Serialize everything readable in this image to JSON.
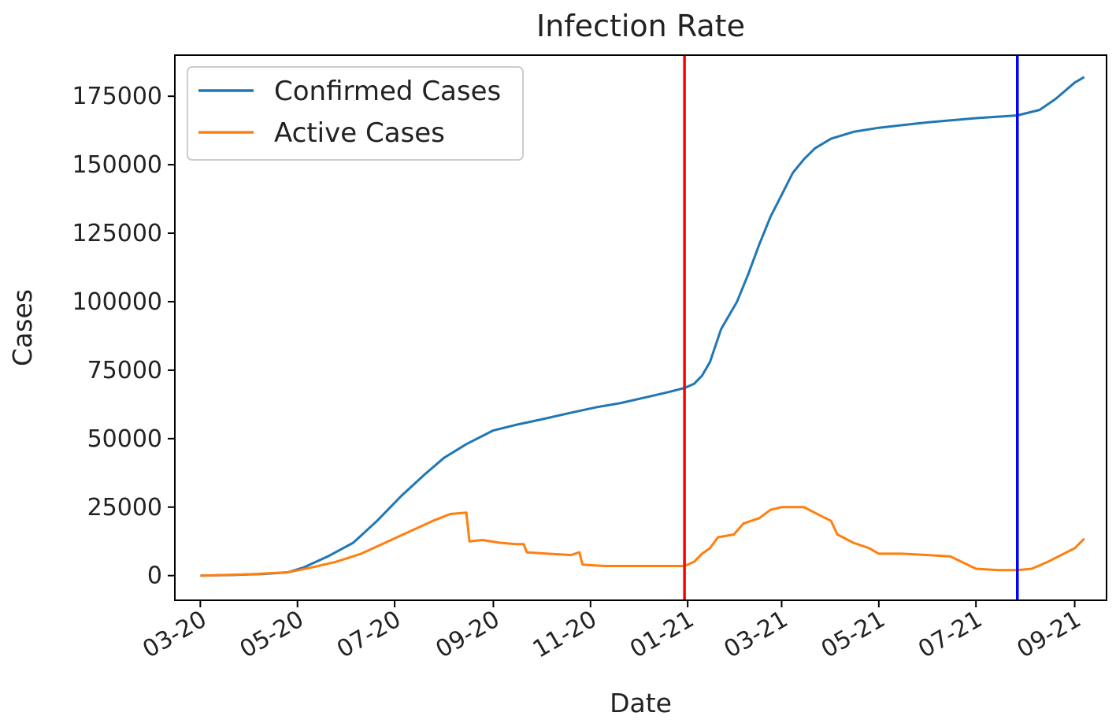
{
  "chart_data": {
    "type": "line",
    "title": "Infection Rate",
    "xlabel": "Date",
    "ylabel": "Cases",
    "xlim": [
      "2020-02-14",
      "2021-09-21"
    ],
    "ylim": [
      -9000,
      190000
    ],
    "x_ticks": [
      {
        "date": "2020-03-01",
        "label": "03-20"
      },
      {
        "date": "2020-05-01",
        "label": "05-20"
      },
      {
        "date": "2020-07-01",
        "label": "07-20"
      },
      {
        "date": "2020-09-01",
        "label": "09-20"
      },
      {
        "date": "2020-11-01",
        "label": "11-20"
      },
      {
        "date": "2021-01-01",
        "label": "01-21"
      },
      {
        "date": "2021-03-01",
        "label": "03-21"
      },
      {
        "date": "2021-05-01",
        "label": "05-21"
      },
      {
        "date": "2021-07-01",
        "label": "07-21"
      },
      {
        "date": "2021-09-01",
        "label": "09-21"
      }
    ],
    "y_ticks": [
      0,
      25000,
      50000,
      75000,
      100000,
      125000,
      150000,
      175000
    ],
    "grid": false,
    "legend_position": "top-left",
    "vlines": [
      {
        "date": "2020-12-30",
        "color": "#ff0000"
      },
      {
        "date": "2021-07-27",
        "color": "#0000ff"
      }
    ],
    "series": [
      {
        "name": "Confirmed Cases",
        "color": "#1f77b4",
        "points": [
          [
            "2020-03-01",
            0
          ],
          [
            "2020-03-20",
            200
          ],
          [
            "2020-04-10",
            600
          ],
          [
            "2020-04-25",
            1200
          ],
          [
            "2020-05-05",
            3000
          ],
          [
            "2020-05-20",
            7000
          ],
          [
            "2020-06-05",
            12000
          ],
          [
            "2020-06-20",
            20000
          ],
          [
            "2020-07-05",
            29000
          ],
          [
            "2020-07-20",
            37000
          ],
          [
            "2020-08-01",
            43000
          ],
          [
            "2020-08-15",
            48000
          ],
          [
            "2020-09-01",
            53000
          ],
          [
            "2020-09-15",
            55000
          ],
          [
            "2020-10-01",
            57000
          ],
          [
            "2020-10-20",
            59500
          ],
          [
            "2020-11-05",
            61500
          ],
          [
            "2020-11-20",
            63000
          ],
          [
            "2020-12-05",
            65000
          ],
          [
            "2020-12-20",
            67000
          ],
          [
            "2020-12-30",
            68500
          ],
          [
            "2021-01-05",
            70000
          ],
          [
            "2021-01-10",
            73000
          ],
          [
            "2021-01-15",
            78000
          ],
          [
            "2021-01-22",
            90000
          ],
          [
            "2021-02-01",
            100000
          ],
          [
            "2021-02-08",
            110000
          ],
          [
            "2021-02-15",
            121000
          ],
          [
            "2021-02-22",
            131000
          ],
          [
            "2021-03-01",
            139000
          ],
          [
            "2021-03-08",
            147000
          ],
          [
            "2021-03-15",
            152000
          ],
          [
            "2021-03-22",
            156000
          ],
          [
            "2021-04-01",
            159500
          ],
          [
            "2021-04-15",
            162000
          ],
          [
            "2021-05-01",
            163500
          ],
          [
            "2021-06-01",
            165500
          ],
          [
            "2021-07-01",
            167000
          ],
          [
            "2021-07-27",
            168000
          ],
          [
            "2021-08-10",
            170000
          ],
          [
            "2021-08-20",
            174000
          ],
          [
            "2021-09-01",
            180000
          ],
          [
            "2021-09-07",
            182000
          ]
        ]
      },
      {
        "name": "Active Cases",
        "color": "#ff7f0e",
        "points": [
          [
            "2020-03-01",
            0
          ],
          [
            "2020-04-01",
            500
          ],
          [
            "2020-04-25",
            1200
          ],
          [
            "2020-05-10",
            3000
          ],
          [
            "2020-05-25",
            5000
          ],
          [
            "2020-06-10",
            8000
          ],
          [
            "2020-06-25",
            12000
          ],
          [
            "2020-07-10",
            16000
          ],
          [
            "2020-07-25",
            20000
          ],
          [
            "2020-08-05",
            22500
          ],
          [
            "2020-08-15",
            23000
          ],
          [
            "2020-08-17",
            12500
          ],
          [
            "2020-08-25",
            13000
          ],
          [
            "2020-09-05",
            12000
          ],
          [
            "2020-09-15",
            11500
          ],
          [
            "2020-09-20",
            11500
          ],
          [
            "2020-09-22",
            8500
          ],
          [
            "2020-10-05",
            8000
          ],
          [
            "2020-10-20",
            7500
          ],
          [
            "2020-10-25",
            8500
          ],
          [
            "2020-10-27",
            4000
          ],
          [
            "2020-11-10",
            3500
          ],
          [
            "2020-12-01",
            3500
          ],
          [
            "2020-12-30",
            3500
          ],
          [
            "2021-01-05",
            5000
          ],
          [
            "2021-01-10",
            8000
          ],
          [
            "2021-01-15",
            10000
          ],
          [
            "2021-01-20",
            14000
          ],
          [
            "2021-01-30",
            15000
          ],
          [
            "2021-02-05",
            19000
          ],
          [
            "2021-02-15",
            21000
          ],
          [
            "2021-02-22",
            24000
          ],
          [
            "2021-03-01",
            25000
          ],
          [
            "2021-03-15",
            25000
          ],
          [
            "2021-03-25",
            22000
          ],
          [
            "2021-04-01",
            20000
          ],
          [
            "2021-04-05",
            15000
          ],
          [
            "2021-04-15",
            12000
          ],
          [
            "2021-04-25",
            10000
          ],
          [
            "2021-05-01",
            8000
          ],
          [
            "2021-05-15",
            8000
          ],
          [
            "2021-06-01",
            7500
          ],
          [
            "2021-06-15",
            7000
          ],
          [
            "2021-07-01",
            2500
          ],
          [
            "2021-07-15",
            2000
          ],
          [
            "2021-07-27",
            2000
          ],
          [
            "2021-08-05",
            2500
          ],
          [
            "2021-08-15",
            5000
          ],
          [
            "2021-09-01",
            10000
          ],
          [
            "2021-09-07",
            13500
          ]
        ]
      }
    ]
  }
}
